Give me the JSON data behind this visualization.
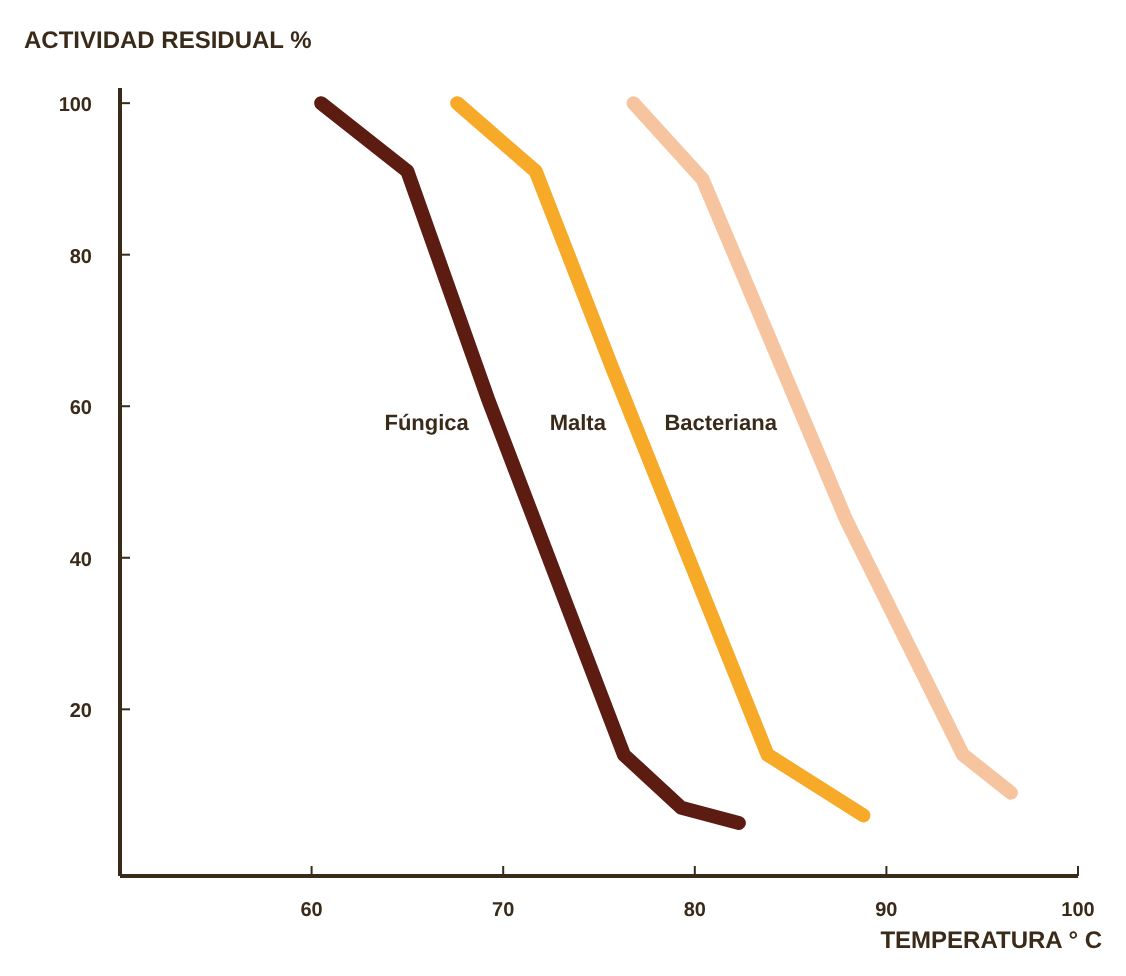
{
  "chart_data": {
    "type": "line",
    "ylabel": "ACTIVIDAD RESIDUAL %",
    "xlabel": "TEMPERATURA ° C",
    "xlim": [
      50,
      100
    ],
    "ylim": [
      -2,
      102
    ],
    "xticks": [
      60,
      70,
      80,
      90,
      100
    ],
    "yticks": [
      20,
      40,
      60,
      80,
      100
    ],
    "grid": false,
    "marker": "none",
    "line_style": "solid",
    "series": [
      {
        "name": "Fúngica",
        "color": "#5c1c12",
        "x": [
          60.5,
          65,
          69.2,
          76.3,
          79.3,
          82.3
        ],
        "values": [
          100,
          91,
          61,
          14,
          7,
          5
        ]
      },
      {
        "name": "Malta",
        "color": "#f7a928",
        "x": [
          67.6,
          71.7,
          75.7,
          83.8,
          88.8
        ],
        "values": [
          100,
          91,
          65,
          14,
          6
        ]
      },
      {
        "name": "Bacteriana",
        "color": "#f7c4a0",
        "x": [
          76.8,
          80.4,
          87.9,
          94,
          96.5
        ],
        "values": [
          100,
          90,
          45,
          14,
          9
        ]
      }
    ]
  }
}
